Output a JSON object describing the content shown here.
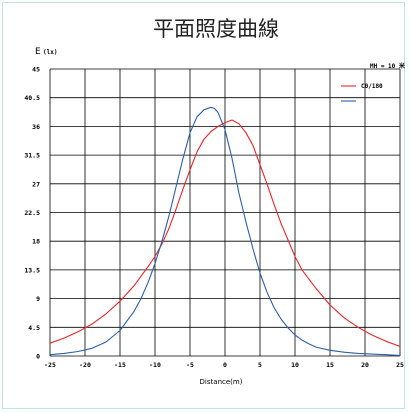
{
  "chart_data": {
    "type": "line",
    "title": "平面照度曲線",
    "ylabel": "E",
    "ylabel_unit": "(lx)",
    "xlabel": "Distance(m)",
    "annotation": "MH = 10 米",
    "xlim": [
      -25,
      25
    ],
    "ylim": [
      0,
      45
    ],
    "xticks": [
      "-25",
      "-20",
      "-15",
      "-10",
      "-5",
      "0",
      "5",
      "10",
      "15",
      "20",
      "25"
    ],
    "yticks": [
      "0",
      "4.5",
      "9",
      "13.5",
      "18",
      "22.5",
      "27",
      "31.5",
      "36",
      "40.5",
      "45"
    ],
    "series": [
      {
        "name": "C0/180",
        "color": "#e8262a",
        "x": [
          -25,
          -23,
          -21,
          -19,
          -17,
          -15,
          -13,
          -11,
          -10,
          -9,
          -8,
          -7,
          -6,
          -5,
          -4,
          -3,
          -2,
          -1,
          0,
          1,
          2,
          3,
          4,
          5,
          6,
          7,
          8,
          9,
          10,
          11,
          13,
          15,
          17,
          19,
          21,
          23,
          25
        ],
        "y": [
          2,
          2.8,
          3.8,
          5,
          6.6,
          8.6,
          11,
          14,
          15.6,
          17.6,
          20,
          23,
          26.2,
          29.2,
          32,
          34,
          35.2,
          36,
          36.6,
          37,
          36.4,
          35,
          33,
          30,
          27,
          23.8,
          20.8,
          18.2,
          15.6,
          13.5,
          10.6,
          8,
          6,
          4.5,
          3.3,
          2.3,
          1.5
        ]
      },
      {
        "name": "",
        "color": "#2e5fa8",
        "x": [
          -25,
          -23,
          -21,
          -19,
          -17,
          -15,
          -13,
          -12,
          -11,
          -10,
          -9,
          -8,
          -7,
          -6,
          -5,
          -4,
          -3,
          -2,
          -1.5,
          -1,
          0,
          1,
          2,
          3,
          4,
          5,
          6,
          7,
          8,
          9,
          10,
          11,
          12,
          13,
          15,
          17,
          19,
          21,
          23,
          25
        ],
        "y": [
          0.2,
          0.4,
          0.7,
          1.2,
          2.2,
          4,
          7,
          9,
          11.5,
          14.5,
          18,
          22,
          26.5,
          31,
          35,
          37.5,
          38.6,
          39,
          38.8,
          38.2,
          35.5,
          31,
          25.5,
          21,
          16.8,
          13,
          10,
          7.6,
          5.8,
          4.4,
          3.3,
          2.5,
          1.9,
          1.4,
          0.9,
          0.6,
          0.4,
          0.3,
          0.2,
          0.1
        ]
      }
    ],
    "grid": true,
    "legend": "top-right"
  }
}
